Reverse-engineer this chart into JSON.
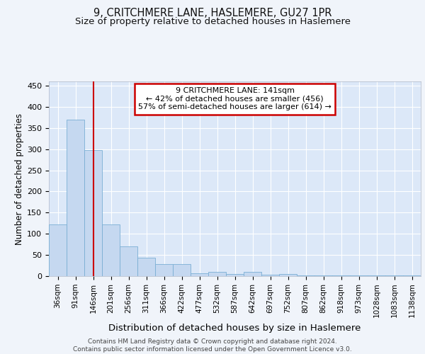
{
  "title1": "9, CRITCHMERE LANE, HASLEMERE, GU27 1PR",
  "title2": "Size of property relative to detached houses in Haslemere",
  "xlabel": "Distribution of detached houses by size in Haslemere",
  "ylabel": "Number of detached properties",
  "categories": [
    "36sqm",
    "91sqm",
    "146sqm",
    "201sqm",
    "256sqm",
    "311sqm",
    "366sqm",
    "422sqm",
    "477sqm",
    "532sqm",
    "587sqm",
    "642sqm",
    "697sqm",
    "752sqm",
    "807sqm",
    "862sqm",
    "918sqm",
    "973sqm",
    "1028sqm",
    "1083sqm",
    "1138sqm"
  ],
  "values": [
    122,
    370,
    297,
    122,
    70,
    44,
    28,
    28,
    7,
    10,
    5,
    10,
    4,
    5,
    2,
    2,
    2,
    1,
    1,
    1,
    1
  ],
  "bar_color": "#c5d8f0",
  "bar_edge_color": "#7aafd4",
  "property_line_x": 2.0,
  "annotation_text": "9 CRITCHMERE LANE: 141sqm\n← 42% of detached houses are smaller (456)\n57% of semi-detached houses are larger (614) →",
  "annotation_box_color": "#ffffff",
  "annotation_box_edge_color": "#cc0000",
  "vline_color": "#cc0000",
  "background_color": "#f0f4fa",
  "plot_bg_color": "#dce8f8",
  "grid_color": "#ffffff",
  "footer": "Contains HM Land Registry data © Crown copyright and database right 2024.\nContains public sector information licensed under the Open Government Licence v3.0.",
  "ylim": [
    0,
    460
  ],
  "title_fontsize": 10.5,
  "subtitle_fontsize": 9.5,
  "tick_fontsize": 7.5,
  "ylabel_fontsize": 8.5,
  "xlabel_fontsize": 9.5,
  "ann_fontsize": 8.0,
  "footer_fontsize": 6.5
}
